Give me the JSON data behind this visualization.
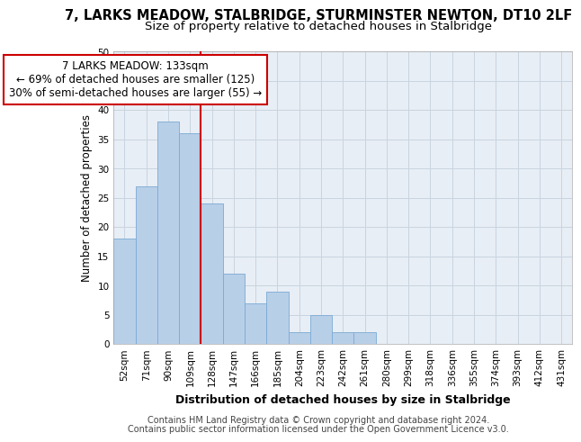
{
  "title": "7, LARKS MEADOW, STALBRIDGE, STURMINSTER NEWTON, DT10 2LF",
  "subtitle": "Size of property relative to detached houses in Stalbridge",
  "xlabel": "Distribution of detached houses by size in Stalbridge",
  "ylabel": "Number of detached properties",
  "categories": [
    "52sqm",
    "71sqm",
    "90sqm",
    "109sqm",
    "128sqm",
    "147sqm",
    "166sqm",
    "185sqm",
    "204sqm",
    "223sqm",
    "242sqm",
    "261sqm",
    "280sqm",
    "299sqm",
    "318sqm",
    "336sqm",
    "355sqm",
    "374sqm",
    "393sqm",
    "412sqm",
    "431sqm"
  ],
  "values": [
    18,
    27,
    38,
    36,
    24,
    12,
    7,
    9,
    2,
    5,
    2,
    2,
    0,
    0,
    0,
    0,
    0,
    0,
    0,
    0,
    0
  ],
  "bar_color": "#b8cfe8",
  "bar_edge_color": "#7baad4",
  "annotation_line1": "7 LARKS MEADOW: 133sqm",
  "annotation_line2": "← 69% of detached houses are smaller (125)",
  "annotation_line3": "30% of semi-detached houses are larger (55) →",
  "annotation_box_color": "#ffffff",
  "annotation_box_edge": "#cc0000",
  "vline_color": "#cc0000",
  "vline_x": 3.5,
  "ylim": [
    0,
    50
  ],
  "yticks": [
    0,
    5,
    10,
    15,
    20,
    25,
    30,
    35,
    40,
    45,
    50
  ],
  "grid_color": "#c8d4e0",
  "bg_color": "#e8eef5",
  "footer_line1": "Contains HM Land Registry data © Crown copyright and database right 2024.",
  "footer_line2": "Contains public sector information licensed under the Open Government Licence v3.0.",
  "title_fontsize": 10.5,
  "subtitle_fontsize": 9.5,
  "xlabel_fontsize": 9,
  "ylabel_fontsize": 8.5,
  "tick_fontsize": 7.5,
  "footer_fontsize": 7,
  "annotation_fontsize": 8.5
}
